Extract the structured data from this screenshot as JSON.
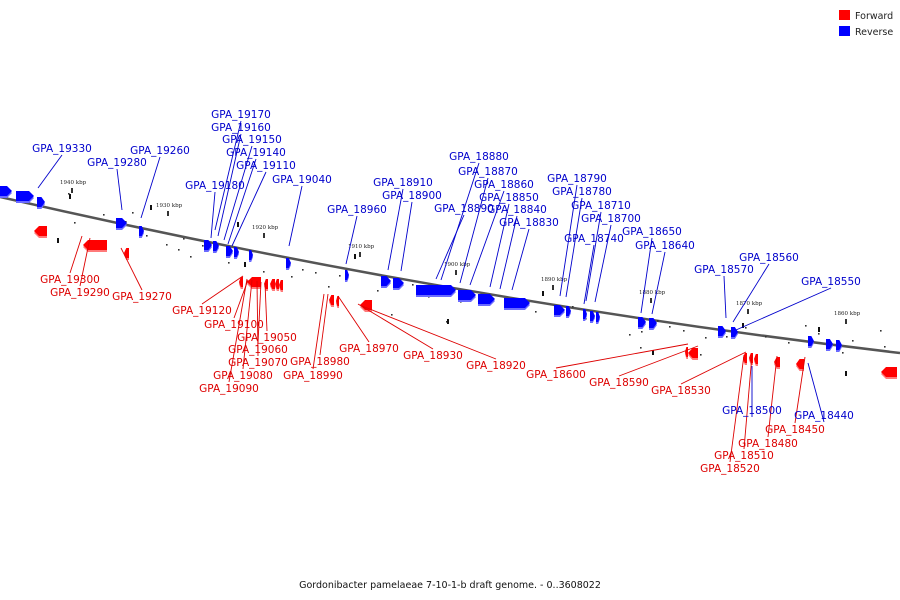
{
  "legend": {
    "forward_label": "Forward",
    "reverse_label": "Reverse",
    "forward_color": "#ff0000",
    "reverse_color": "#0000ff"
  },
  "caption": "Gordonibacter pamelaeae 7-10-1-b draft genome. - 0..3608022",
  "ticks": [
    "1940 kbp",
    "1930 kbp",
    "1920 kbp",
    "1910 kbp",
    "1900 kbp",
    "1890 kbp",
    "1880 kbp",
    "1870 kbp",
    "1860 kbp"
  ],
  "reverse_labels": [
    "GPA_19330",
    "GPA_19280",
    "GPA_19260",
    "GPA_19170",
    "GPA_19160",
    "GPA_19150",
    "GPA_19140",
    "GPA_19110",
    "GPA_19180",
    "GPA_19040",
    "GPA_18880",
    "GPA_18870",
    "GPA_18860",
    "GPA_18850",
    "GPA_18840",
    "GPA_18830",
    "GPA_18910",
    "GPA_18900",
    "GPA_18890",
    "GPA_18960",
    "GPA_18790",
    "GPA_18780",
    "GPA_18710",
    "GPA_18700",
    "GPA_18740",
    "GPA_18650",
    "GPA_18640",
    "GPA_18560",
    "GPA_18570",
    "GPA_18550",
    "GPA_18500",
    "GPA_18440"
  ],
  "forward_labels": [
    "GPA_19300",
    "GPA_19290",
    "GPA_19270",
    "GPA_19120",
    "GPA_19100",
    "GPA_19050",
    "GPA_19060",
    "GPA_19070",
    "GPA_19080",
    "GPA_19090",
    "GPA_18980",
    "GPA_18990",
    "GPA_18970",
    "GPA_18930",
    "GPA_18920",
    "GPA_18600",
    "GPA_18590",
    "GPA_18530",
    "GPA_18450",
    "GPA_18480",
    "GPA_18510",
    "GPA_18520"
  ]
}
